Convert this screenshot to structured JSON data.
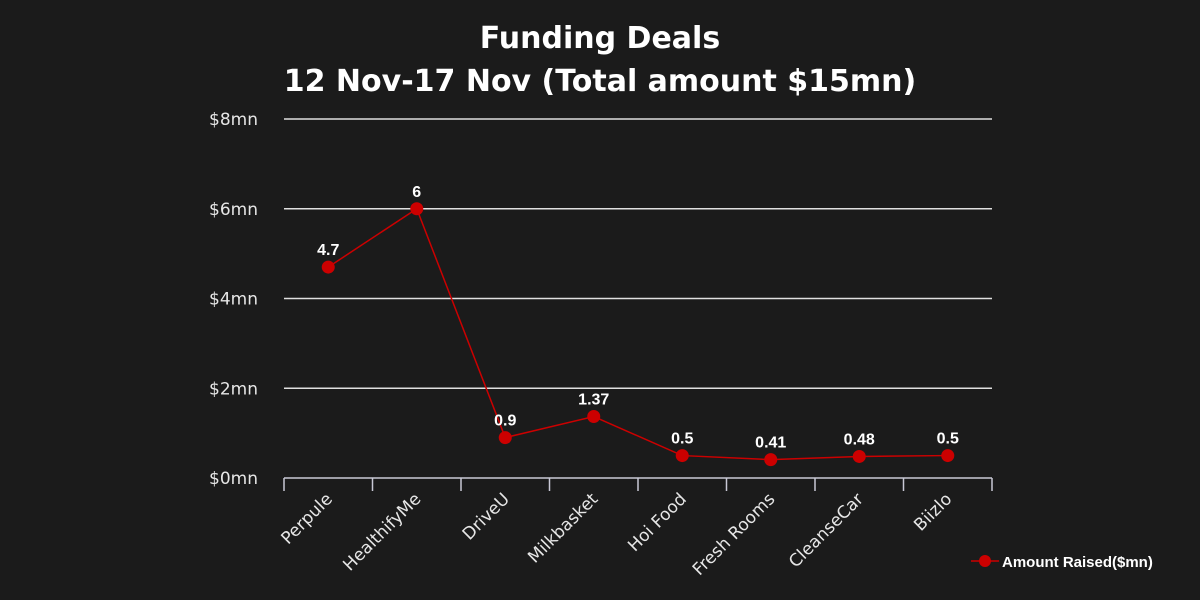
{
  "chart_data": {
    "type": "line",
    "title": "Funding Deals",
    "subtitle": "12 Nov-17 Nov (Total amount $15mn)",
    "categories": [
      "Perpule",
      "HealthifyMe",
      "DriveU",
      "Milkbasket",
      "Hoi Food",
      "Fresh Rooms",
      "CleanseCar",
      "Biizlo"
    ],
    "series": [
      {
        "name": "Amount Raised($mn)",
        "values": [
          4.7,
          6,
          0.9,
          1.37,
          0.5,
          0.41,
          0.48,
          0.5
        ],
        "labels": [
          "4.7",
          "6",
          "0.9",
          "1.37",
          "0.5",
          "0.41",
          "0.48",
          "0.5"
        ],
        "color": "#cc0000"
      }
    ],
    "yticks": [
      {
        "value": 0,
        "label": "$0mn"
      },
      {
        "value": 2,
        "label": "$2mn"
      },
      {
        "value": 4,
        "label": "$4mn"
      },
      {
        "value": 6,
        "label": "$6mn"
      },
      {
        "value": 8,
        "label": "$8mn"
      }
    ],
    "ylim": [
      0,
      8
    ],
    "grid": true,
    "legend_position": "bottom-right",
    "colors": {
      "background": "#1b1b1b",
      "text": "#ffffff",
      "grid": "#e0e0e0",
      "axis": "#c9c9d6"
    }
  }
}
